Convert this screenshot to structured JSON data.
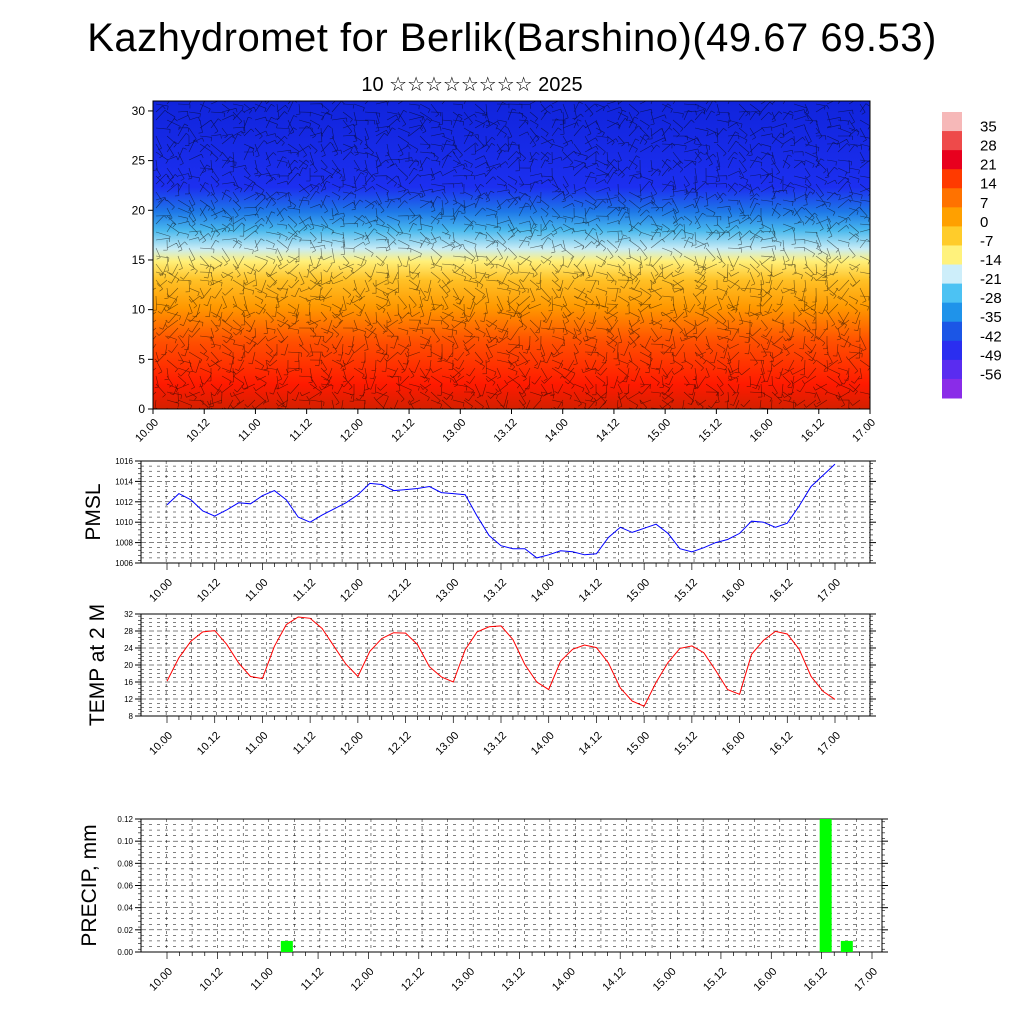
{
  "title": "Kazhydromet for Berlik(Barshino)(49.67 69.53)",
  "subtitle": "10 ☆☆☆☆☆☆☆☆ 2025",
  "colorbar_labels": [
    "35",
    "28",
    "21",
    "14",
    "7",
    "0",
    "-7",
    "-14",
    "-21",
    "-28",
    "-35",
    "-42",
    "-49",
    "-56"
  ],
  "x_tick_labels": [
    "10.00",
    "10.12",
    "11.00",
    "11.12",
    "12.00",
    "12.12",
    "13.00",
    "13.12",
    "14.00",
    "14.12",
    "15.00",
    "15.12",
    "16.00",
    "16.12",
    "17.00"
  ],
  "chart_data": [
    {
      "type": "heatmap",
      "title": "",
      "xlabel": "",
      "ylabel": "",
      "ylim": [
        0,
        31
      ],
      "y_ticks": [
        0,
        5,
        10,
        15,
        20,
        25,
        30
      ],
      "colorbar": [
        35,
        28,
        21,
        14,
        7,
        0,
        -7,
        -14,
        -21,
        -28,
        -35,
        -42,
        -49,
        -56
      ]
    },
    {
      "type": "line",
      "ylabel": "PMSL",
      "ylim": [
        1006,
        1016
      ],
      "y_ticks": [
        1006,
        1008,
        1010,
        1012,
        1014,
        1016
      ],
      "series": [
        {
          "color": "#0000ff",
          "values": [
            1011.7,
            1012.8,
            1012.2,
            1011.1,
            1010.6,
            1011.2,
            1011.9,
            1011.8,
            1012.6,
            1013.1,
            1012.2,
            1010.5,
            1010.0,
            1010.7,
            1011.3,
            1011.9,
            1012.7,
            1013.8,
            1013.7,
            1013.1,
            1013.2,
            1013.3,
            1013.5,
            1012.9,
            1012.8,
            1012.7,
            1010.6,
            1008.7,
            1007.7,
            1007.4,
            1007.4,
            1006.5,
            1006.8,
            1007.2,
            1007.1,
            1006.8,
            1006.9,
            1008.5,
            1009.5,
            1009.0,
            1009.4,
            1009.8,
            1008.9,
            1007.4,
            1007.1,
            1007.5,
            1008.0,
            1008.3,
            1008.9,
            1010.1,
            1010.0,
            1009.5,
            1009.9,
            1011.6,
            1013.5,
            1014.6,
            1015.7
          ]
        }
      ]
    },
    {
      "type": "line",
      "ylabel": "TEMP at 2 M",
      "ylim": [
        8,
        32
      ],
      "y_ticks": [
        8,
        12,
        16,
        20,
        24,
        28,
        32
      ],
      "series": [
        {
          "color": "#ff0000",
          "values": [
            16.2,
            21.7,
            25.6,
            27.8,
            28.1,
            24.9,
            20.5,
            17.3,
            16.8,
            24.4,
            29.5,
            31.3,
            31.0,
            28.6,
            24.4,
            20.2,
            17.3,
            23.2,
            26.2,
            27.6,
            27.5,
            24.8,
            19.6,
            17.2,
            16.0,
            23.6,
            27.8,
            29.0,
            29.2,
            26.0,
            20.1,
            16.0,
            14.2,
            20.9,
            23.7,
            24.7,
            24.1,
            20.5,
            14.6,
            11.5,
            10.3,
            15.9,
            20.6,
            23.9,
            24.5,
            22.9,
            18.7,
            14.2,
            13.1,
            22.5,
            25.8,
            27.9,
            27.3,
            23.7,
            17.3,
            13.8,
            11.9
          ]
        }
      ]
    },
    {
      "type": "bar",
      "ylabel": "PRECIP, mm",
      "ylim": [
        0,
        0.12
      ],
      "y_ticks": [
        0.0,
        0.02,
        0.04,
        0.06,
        0.08,
        0.1,
        0.12
      ],
      "bars": [
        {
          "x": 11.19,
          "value": 0.01
        },
        {
          "x": 16.54,
          "value": 0.12
        },
        {
          "x": 16.75,
          "value": 0.01
        }
      ],
      "bar_color": "#00ff00"
    }
  ]
}
